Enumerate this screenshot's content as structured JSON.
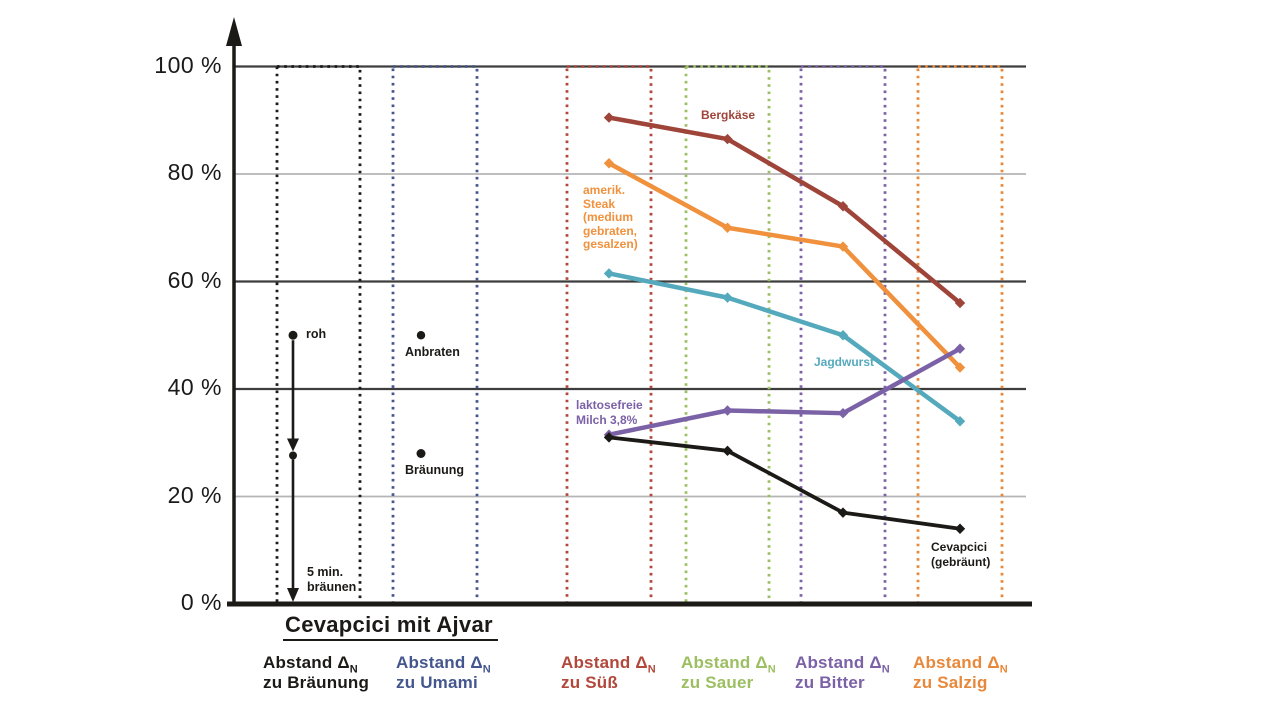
{
  "chart_data": {
    "type": "line",
    "title": "Cevapcici mit Ajvar",
    "y_unit": "%",
    "ylim": [
      0,
      100
    ],
    "grid": true,
    "legend_position": "bottom",
    "y_ticks": [
      {
        "label": "100 %",
        "value": 100,
        "style": "dark"
      },
      {
        "label": "80 %",
        "value": 80,
        "style": "light"
      },
      {
        "label": "60 %",
        "value": 60,
        "style": "dark"
      },
      {
        "label": "40 %",
        "value": 40,
        "style": "dark"
      },
      {
        "label": "20 %",
        "value": 20,
        "style": "light"
      },
      {
        "label": "0 %",
        "value": 0,
        "style": "axis"
      }
    ],
    "columns": [
      {
        "id": "braeunung",
        "delta": "Abstand Δ",
        "sub": "N",
        "zu": "zu Bräunung",
        "color": "#1c1a17"
      },
      {
        "id": "umami",
        "delta": "Abstand Δ",
        "sub": "N",
        "zu": "zu Umami",
        "color": "#44568e"
      },
      {
        "id": "suess",
        "delta": "Abstand Δ",
        "sub": "N",
        "zu": "zu Süß",
        "color": "#b2483b"
      },
      {
        "id": "sauer",
        "delta": "Abstand Δ",
        "sub": "N",
        "zu": "zu Sauer",
        "color": "#9cbf62"
      },
      {
        "id": "bitter",
        "delta": "Abstand Δ",
        "sub": "N",
        "zu": "zu Bitter",
        "color": "#7b61a6"
      },
      {
        "id": "salzig",
        "delta": "Abstand Δ",
        "sub": "N",
        "zu": "zu Salzig",
        "color": "#e8883a"
      }
    ],
    "x_categories": [
      "zu Süß",
      "zu Sauer",
      "zu Bitter",
      "zu Salzig"
    ],
    "series": [
      {
        "name": "Bergkäse",
        "color": "#9e4439",
        "values": [
          90.5,
          86.5,
          74,
          56
        ],
        "label_lines": [
          "Bergkäse"
        ]
      },
      {
        "name": "amerik. Steak (medium gebraten, gesalzen)",
        "color": "#f0913d",
        "values": [
          82,
          70,
          66.5,
          44
        ],
        "label_lines": [
          "amerik.",
          "Steak",
          "(medium",
          "gebraten,",
          "gesalzen)"
        ]
      },
      {
        "name": "Jagdwurst",
        "color": "#55a9bd",
        "values": [
          61.5,
          57,
          50,
          34
        ],
        "label_lines": [
          "Jagdwurst"
        ]
      },
      {
        "name": "laktosefreie Milch 3,8%",
        "color": "#7b61a6",
        "values": [
          31.5,
          36,
          35.5,
          47.5
        ],
        "label_lines": [
          "laktosefreie",
          "Milch 3,8%"
        ]
      },
      {
        "name": "Cevapcici (gebräunt)",
        "color": "#1c1a17",
        "values": [
          31,
          28.5,
          17,
          14
        ],
        "label_lines": [
          "Cevapcici",
          "(gebräunt)"
        ]
      }
    ],
    "annotations": {
      "roh": {
        "label": "roh",
        "value": 50
      },
      "anbraten": {
        "label": "Anbraten",
        "value": 50
      },
      "braeunung_punkt": {
        "label": "Bräunung",
        "value": 28
      },
      "arrow_stop_value": 28,
      "arrow_end_value": 0,
      "five_min": {
        "lines": [
          "5 min.",
          "bräunen"
        ]
      }
    }
  }
}
